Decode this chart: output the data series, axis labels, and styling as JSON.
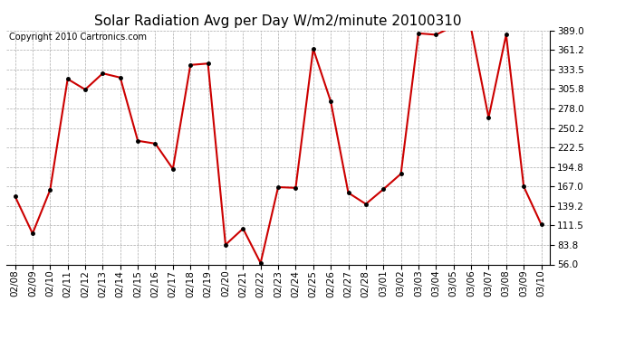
{
  "title": "Solar Radiation Avg per Day W/m2/minute 20100310",
  "copyright": "Copyright 2010 Cartronics.com",
  "dates": [
    "02/08",
    "02/09",
    "02/10",
    "02/11",
    "02/12",
    "02/13",
    "02/14",
    "02/15",
    "02/16",
    "02/17",
    "02/18",
    "02/19",
    "02/20",
    "02/21",
    "02/22",
    "02/23",
    "02/24",
    "02/25",
    "02/26",
    "02/27",
    "02/28",
    "03/01",
    "03/02",
    "03/03",
    "03/04",
    "03/05",
    "03/06",
    "03/07",
    "03/08",
    "03/09",
    "03/10"
  ],
  "values": [
    153,
    100,
    162,
    320,
    305,
    328,
    322,
    232,
    228,
    192,
    340,
    342,
    84,
    107,
    58,
    166,
    165,
    363,
    288,
    158,
    142,
    163,
    185,
    385,
    383,
    395,
    392,
    265,
    383,
    167,
    113
  ],
  "line_color": "#cc0000",
  "marker_color": "#000000",
  "bg_color": "#ffffff",
  "grid_color": "#aaaaaa",
  "yticks": [
    56.0,
    83.8,
    111.5,
    139.2,
    167.0,
    194.8,
    222.5,
    250.2,
    278.0,
    305.8,
    333.5,
    361.2,
    389.0
  ],
  "ymin": 56.0,
  "ymax": 389.0,
  "title_fontsize": 11,
  "copyright_fontsize": 7,
  "tick_fontsize": 7.5
}
